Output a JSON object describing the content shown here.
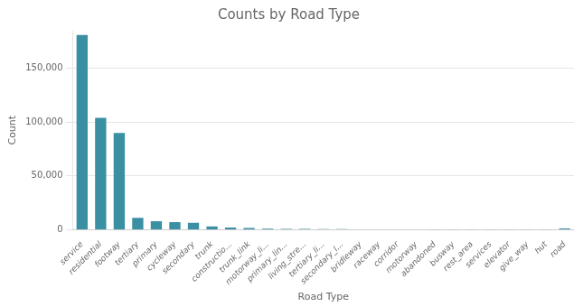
{
  "chart_data": {
    "type": "bar",
    "title": "Counts by Road Type",
    "xlabel": "Road Type",
    "ylabel": "Count",
    "categories": [
      "service",
      "residential",
      "footway",
      "tertiary",
      "primary",
      "cycleway",
      "secondary",
      "trunk",
      "constructio...",
      "trunk_link",
      "motorway_li...",
      "primary_lin...",
      "living_stre...",
      "tertiary_li...",
      "secondary_l...",
      "bridleway",
      "raceway",
      "corridor",
      "motorway",
      "abandoned",
      "busway",
      "rest_area",
      "services",
      "elevator",
      "give_way",
      "hut",
      "road"
    ],
    "values": [
      181000,
      104000,
      90000,
      11000,
      8000,
      7000,
      6500,
      3000,
      2000,
      1500,
      1000,
      800,
      700,
      600,
      500,
      400,
      350,
      300,
      250,
      200,
      150,
      120,
      100,
      80,
      60,
      50,
      1100
    ],
    "color": "#3a8fa3",
    "ylim": [
      0,
      185000
    ],
    "yticks": [
      0,
      {
        "value": 50000,
        "label": "50,000"
      },
      {
        "value": 100000,
        "label": "100,000"
      },
      {
        "value": 150000,
        "label": "150,000"
      }
    ],
    "grid": true
  }
}
